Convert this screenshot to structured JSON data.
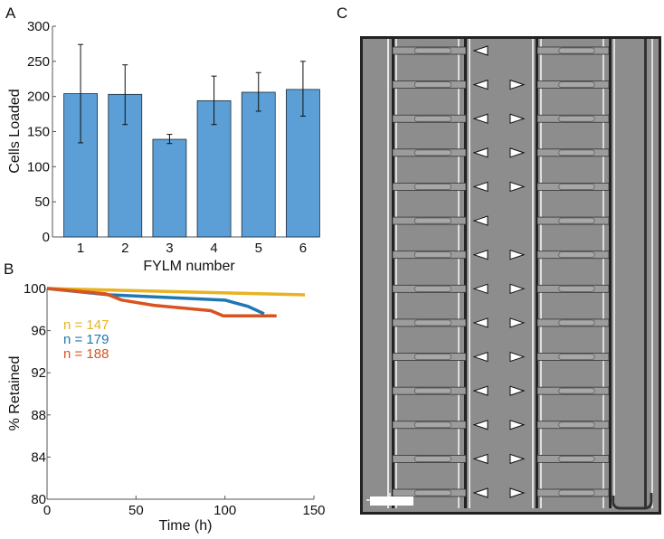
{
  "panel_labels": {
    "a": "A",
    "b": "B",
    "c": "C"
  },
  "chart_data": [
    {
      "type": "bar",
      "panel": "A",
      "xlabel": "FYLM number",
      "ylabel": "Cells Loaded",
      "categories": [
        "1",
        "2",
        "3",
        "4",
        "5",
        "6"
      ],
      "values": [
        204,
        203,
        139,
        194,
        206,
        210
      ],
      "error_low": [
        134,
        160,
        133,
        160,
        179,
        172
      ],
      "error_high": [
        274,
        245,
        146,
        229,
        234,
        250
      ],
      "ylim": [
        0,
        300
      ],
      "yticks": [
        0,
        50,
        100,
        150,
        200,
        250,
        300
      ],
      "bar_color": "#5b9fd6",
      "grid": false
    },
    {
      "type": "line",
      "panel": "B",
      "xlabel": "Time (h)",
      "ylabel": "% Retained",
      "xlim": [
        0,
        150
      ],
      "ylim": [
        80,
        100
      ],
      "xticks": [
        0,
        50,
        100,
        150
      ],
      "yticks": [
        80,
        84,
        88,
        92,
        96,
        100
      ],
      "legend_position": "top-left",
      "grid": false,
      "series": [
        {
          "name": "n = 147",
          "color": "#e8b220",
          "x": [
            0,
            145
          ],
          "y": [
            100,
            99.4
          ]
        },
        {
          "name": "n = 179",
          "color": "#1f77b4",
          "x": [
            0,
            35,
            100,
            113,
            122
          ],
          "y": [
            100,
            99.4,
            98.9,
            98.3,
            97.6
          ]
        },
        {
          "name": "n = 188",
          "color": "#d9531e",
          "x": [
            0,
            33,
            42,
            60,
            92,
            99,
            129
          ],
          "y": [
            100,
            99.5,
            98.9,
            98.4,
            97.9,
            97.4,
            97.4
          ]
        }
      ]
    }
  ],
  "micrograph": {
    "rows": [
      {
        "left_arrow": true,
        "right_arrow": false
      },
      {
        "left_arrow": true,
        "right_arrow": true
      },
      {
        "left_arrow": true,
        "right_arrow": true
      },
      {
        "left_arrow": true,
        "right_arrow": true
      },
      {
        "left_arrow": true,
        "right_arrow": true
      },
      {
        "left_arrow": true,
        "right_arrow": false
      },
      {
        "left_arrow": true,
        "right_arrow": true
      },
      {
        "left_arrow": true,
        "right_arrow": true
      },
      {
        "left_arrow": true,
        "right_arrow": true
      },
      {
        "left_arrow": true,
        "right_arrow": true
      },
      {
        "left_arrow": true,
        "right_arrow": true
      },
      {
        "left_arrow": true,
        "right_arrow": true
      },
      {
        "left_arrow": true,
        "right_arrow": true
      },
      {
        "left_arrow": true,
        "right_arrow": true
      }
    ]
  }
}
